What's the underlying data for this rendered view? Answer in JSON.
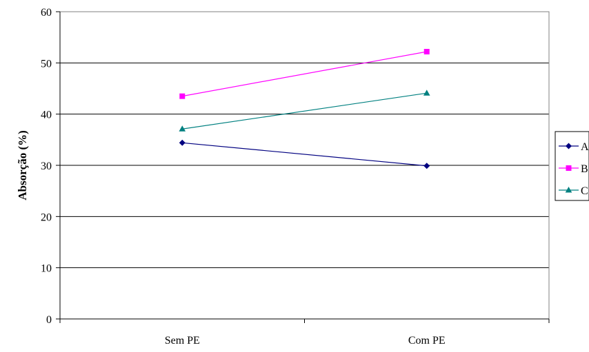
{
  "chart_data": {
    "type": "line",
    "title": "",
    "xlabel": "",
    "ylabel": "Absorção (%)",
    "categories": [
      "Sem PE",
      "Com PE"
    ],
    "ylim": [
      0,
      60
    ],
    "yticks": [
      0,
      10,
      20,
      30,
      40,
      50,
      60
    ],
    "grid": true,
    "legend_position": "right",
    "series": [
      {
        "name": "A",
        "values": [
          34.4,
          29.9
        ],
        "color": "#000080",
        "marker": "diamond"
      },
      {
        "name": "B",
        "values": [
          43.5,
          52.2
        ],
        "color": "#ff00ff",
        "marker": "square"
      },
      {
        "name": "C",
        "values": [
          37.1,
          44.1
        ],
        "color": "#008080",
        "marker": "triangle"
      }
    ]
  }
}
